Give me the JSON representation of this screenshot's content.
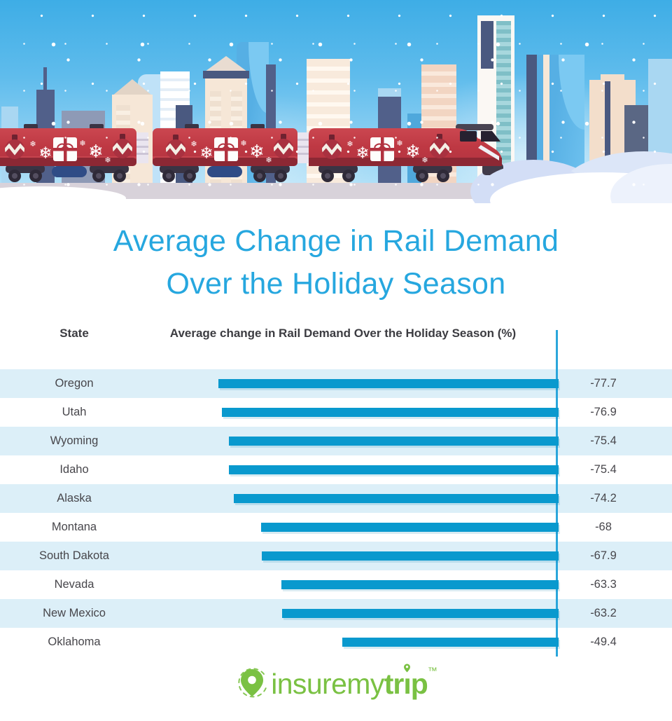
{
  "brand": {
    "title_color": "#26A7DF",
    "bar_color": "#0999CE",
    "axis_color": "#2BA6DB",
    "row_alt_color": "#DCEFF8",
    "logo_green": "#7AC143",
    "train_red": "#BE3843"
  },
  "title": {
    "line1": "Average Change in Rail Demand",
    "line2": "Over the Holiday Season"
  },
  "chart_data": {
    "type": "bar",
    "orientation": "horizontal",
    "title": "Average Change in Rail Demand Over the Holiday Season",
    "column_headers": {
      "state": "State",
      "value": "Average change in Rail Demand Over the Holiday Season (%)"
    },
    "categories": [
      "Oregon",
      "Utah",
      "Wyoming",
      "Idaho",
      "Alaska",
      "Montana",
      "South Dakota",
      "Nevada",
      "New Mexico",
      "Oklahoma"
    ],
    "values": [
      -77.7,
      -76.9,
      -75.4,
      -75.4,
      -74.2,
      -68,
      -67.9,
      -63.3,
      -63.2,
      -49.4
    ],
    "value_labels": [
      "-77.7",
      "-76.9",
      "-75.4",
      "-75.4",
      "-74.2",
      "-68",
      "-67.9",
      "-63.3",
      "-63.2",
      "-49.4"
    ],
    "unit": "%",
    "xlim": [
      -80,
      0
    ],
    "axis_side": "right",
    "grid": "off",
    "legend": "none"
  },
  "footer": {
    "logo_regular": "insuremy",
    "logo_bold_pre": "tr",
    "logo_bold_i": "ı",
    "logo_bold_post": "p",
    "trademark": "™"
  }
}
